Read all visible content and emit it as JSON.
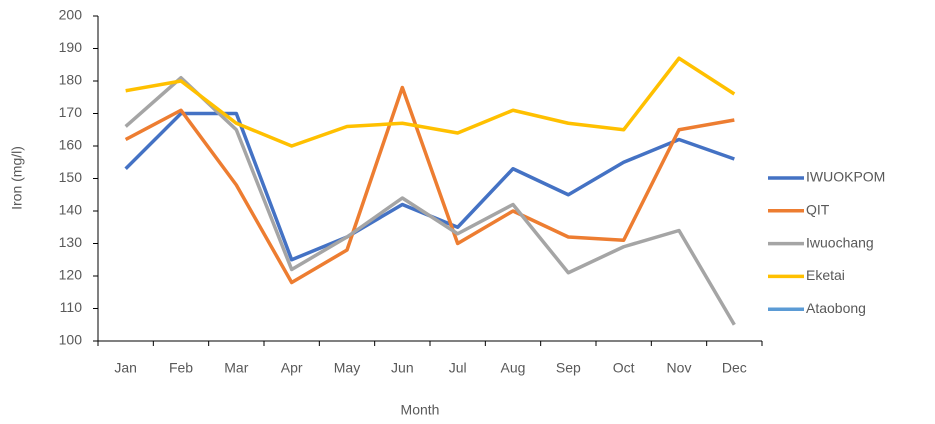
{
  "chart_data": {
    "type": "line",
    "x_label": "Month",
    "y_label": "Iron (mg/l)",
    "categories": [
      "Jan",
      "Feb",
      "Mar",
      "Apr",
      "May",
      "Jun",
      "Jul",
      "Aug",
      "Sep",
      "Oct",
      "Nov",
      "Dec"
    ],
    "series": [
      {
        "name": "IWUOKPOM",
        "color": "#4472c4",
        "values": [
          153,
          170,
          170,
          125,
          132,
          142,
          135,
          153,
          145,
          155,
          162,
          156
        ]
      },
      {
        "name": "QIT",
        "color": "#ed7d31",
        "values": [
          162,
          171,
          148,
          118,
          128,
          178,
          130,
          140,
          132,
          131,
          165,
          168
        ]
      },
      {
        "name": "Iwuochang",
        "color": "#a5a5a5",
        "values": [
          166,
          181,
          165,
          122,
          132,
          144,
          133,
          142,
          121,
          129,
          134,
          105
        ]
      },
      {
        "name": "Eketai",
        "color": "#ffc000",
        "values": [
          177,
          180,
          167,
          160,
          166,
          167,
          164,
          171,
          167,
          165,
          187,
          176
        ]
      },
      {
        "name": "Ataobong",
        "color": "#5b9bd5",
        "values": [
          null,
          null,
          null,
          null,
          null,
          null,
          null,
          null,
          null,
          null,
          null,
          null
        ]
      }
    ],
    "ylim": [
      100,
      200
    ],
    "yticks": [
      100,
      110,
      120,
      130,
      140,
      150,
      160,
      170,
      180,
      190,
      200
    ],
    "grid": false,
    "legend": "right"
  }
}
